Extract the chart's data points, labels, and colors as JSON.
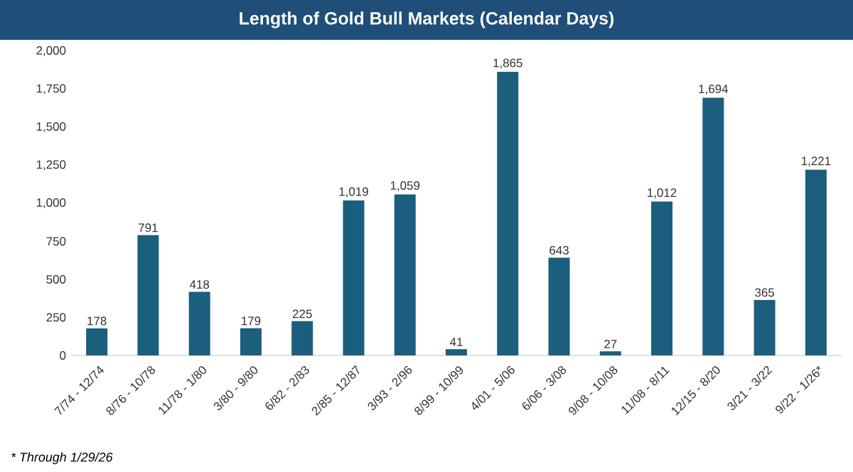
{
  "chart_data": {
    "type": "bar",
    "title": "Length of Gold Bull Markets (Calendar Days)",
    "categories": [
      "7/74 - 12/74",
      "8/76 - 10/78",
      "11/78 - 1/80",
      "3/80 - 9/80",
      "6/82 - 2/83",
      "2/85 - 12/87",
      "3/93 - 2/96",
      "8/99 - 10/99",
      "4/01 - 5/06",
      "6/06 - 3/08",
      "9/08 - 10/08",
      "11/08 - 8/11",
      "12/15 - 8/20",
      "3/21 - 3/22",
      "9/22 - 1/26*"
    ],
    "values": [
      178,
      791,
      418,
      179,
      225,
      1019,
      1059,
      41,
      1865,
      643,
      27,
      1012,
      1694,
      365,
      1221
    ],
    "value_labels": [
      "178",
      "791",
      "418",
      "179",
      "225",
      "1,019",
      "1,059",
      "41",
      "1,865",
      "643",
      "27",
      "1,012",
      "1,694",
      "365",
      "1,221"
    ],
    "color": "#1b5e7d",
    "ylim": [
      0,
      2000
    ],
    "yticks": [
      0,
      250,
      500,
      750,
      {
        "value": 1000,
        "label": "1,000"
      },
      {
        "value": 1250,
        "label": "1,250"
      },
      {
        "value": 1500,
        "label": "1,500"
      },
      {
        "value": 1750,
        "label": "1,750"
      },
      {
        "value": 2000,
        "label": "2,000"
      }
    ],
    "annotations": [
      "* Through 1/29/26"
    ]
  }
}
